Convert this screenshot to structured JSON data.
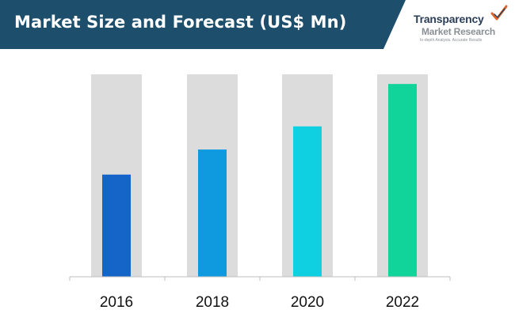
{
  "header": {
    "title": "Market Size and Forecast (US$ Mn)"
  },
  "logo": {
    "line1": "Transparency",
    "line2": "Market Research",
    "tagline": "In-depth Analysis. Accurate Results"
  },
  "colors": {
    "title_bar": "#1d4f6c",
    "track": "#dcdcdc",
    "bars": [
      "#1565c8",
      "#0f99de",
      "#0fd0e0",
      "#10d49a"
    ]
  },
  "chart_data": {
    "type": "bar",
    "categories": [
      "2016",
      "2018",
      "2020",
      "2022"
    ],
    "values": [
      0.53,
      0.66,
      0.78,
      1.0
    ],
    "values_note_unit": "relative",
    "title": "Market Size and Forecast (US$ Mn)",
    "xlabel": "",
    "ylabel": "",
    "ylim": [
      0,
      1.05
    ],
    "grid": false,
    "legend": "none"
  }
}
